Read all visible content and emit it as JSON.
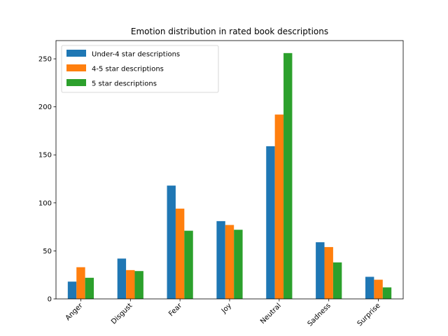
{
  "chart_data": {
    "type": "bar",
    "title": "Emotion distribution in rated book descriptions",
    "xlabel": "",
    "ylabel": "",
    "categories": [
      "Anger",
      "Disgust",
      "Fear",
      "Joy",
      "Neutral",
      "Sadness",
      "Surprise"
    ],
    "series": [
      {
        "name": "Under-4 star descriptions",
        "color": "#1f77b4",
        "values": [
          18,
          42,
          118,
          81,
          159,
          59,
          23
        ]
      },
      {
        "name": "4-5 star descriptions",
        "color": "#ff7f0e",
        "values": [
          33,
          30,
          94,
          77,
          192,
          54,
          20
        ]
      },
      {
        "name": "5 star descriptions",
        "color": "#2ca02c",
        "values": [
          22,
          29,
          71,
          72,
          256,
          38,
          12
        ]
      }
    ],
    "ylim": [
      0,
      269
    ],
    "yticks": [
      0,
      50,
      100,
      150,
      200,
      250
    ],
    "legend_position": "top-left",
    "grid": false
  }
}
